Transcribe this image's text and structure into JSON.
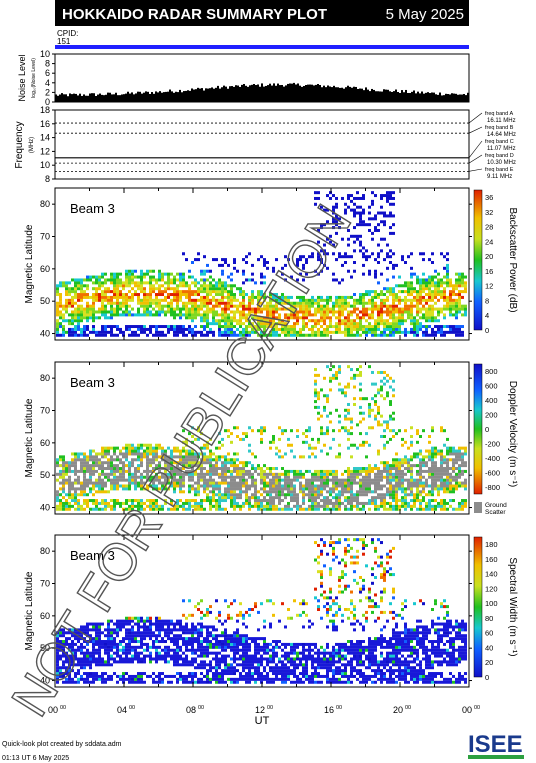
{
  "header": {
    "title": "HOKKAIDO RADAR SUMMARY PLOT",
    "date": "5 May 2025",
    "cpid_label": "CPID:",
    "cpid_value": "151"
  },
  "watermark": "NOT FOR PUBLICATION",
  "noise_panel": {
    "ylabel": "Noise Level",
    "ylabel_sub": "log₁₀(Noise Level)",
    "ticks": [
      "0",
      "2",
      "4",
      "6",
      "8",
      "10"
    ]
  },
  "freq_panel": {
    "ylabel": "Frequency",
    "ylabel_sub": "(MHz)",
    "ticks": [
      "8",
      "10",
      "12",
      "14",
      "16",
      "18"
    ],
    "bands": [
      {
        "name": "freq band A",
        "value": "16.11 MHz"
      },
      {
        "name": "freq band B",
        "value": "14.64 MHz"
      },
      {
        "name": "freq band C",
        "value": "11.07 MHz"
      },
      {
        "name": "freq band D",
        "value": "10.30 MHz"
      },
      {
        "name": "freq band E",
        "value": "9.11 MHz"
      }
    ]
  },
  "panels": [
    {
      "beam": "Beam  3",
      "ylabel": "Magnetic Latitude",
      "yticks": [
        "40",
        "50",
        "60",
        "70",
        "80"
      ],
      "cbar_label": "Backscatter Power (dB)",
      "cbar_ticks": [
        "0",
        "4",
        "8",
        "12",
        "16",
        "20",
        "24",
        "28",
        "32",
        "36"
      ],
      "ground_label": ""
    },
    {
      "beam": "Beam  3",
      "ylabel": "Magnetic Latitude",
      "yticks": [
        "40",
        "50",
        "60",
        "70",
        "80"
      ],
      "cbar_label": "Doppler Velocity (m s⁻¹)",
      "cbar_ticks": [
        "800",
        "600",
        "400",
        "200",
        "0",
        "-200",
        "-400",
        "-600",
        "-800"
      ],
      "ground_label": "Ground Scatter"
    },
    {
      "beam": "Beam  3",
      "ylabel": "Magnetic Latitude",
      "yticks": [
        "40",
        "50",
        "60",
        "70",
        "80"
      ],
      "cbar_label": "Spectral Width (m s⁻¹)",
      "cbar_ticks": [
        "0",
        "20",
        "40",
        "60",
        "80",
        "100",
        "120",
        "140",
        "160",
        "180"
      ],
      "ground_label": ""
    }
  ],
  "xaxis": {
    "label": "UT",
    "ticks": [
      "00",
      "04",
      "08",
      "12",
      "16",
      "20",
      "00"
    ],
    "tick_sup": "00"
  },
  "footer": {
    "line1": "Quick-look plot created by sddata.adm",
    "line2": "01:13 UT  6 May 2025",
    "logo": "ISEE"
  },
  "chart_data": {
    "type": "heatmap",
    "title": "HOKKAIDO RADAR SUMMARY PLOT",
    "x_unit": "UT hours",
    "xlim": [
      0,
      24
    ],
    "noise_level": {
      "ylim": [
        0,
        10
      ],
      "typical_range": [
        1,
        3.5
      ]
    },
    "frequency": {
      "ylim": [
        8,
        18
      ],
      "bands_mhz": [
        16.11,
        14.64,
        11.07,
        10.3,
        9.11
      ]
    },
    "panels": [
      {
        "parameter": "Backscatter Power (dB)",
        "ylim": [
          38,
          85
        ],
        "clim": [
          0,
          36
        ]
      },
      {
        "parameter": "Doppler Velocity (m s-1)",
        "ylim": [
          38,
          85
        ],
        "clim": [
          -800,
          800
        ]
      },
      {
        "parameter": "Spectral Width (m s-1)",
        "ylim": [
          38,
          85
        ],
        "clim": [
          0,
          180
        ]
      }
    ]
  }
}
